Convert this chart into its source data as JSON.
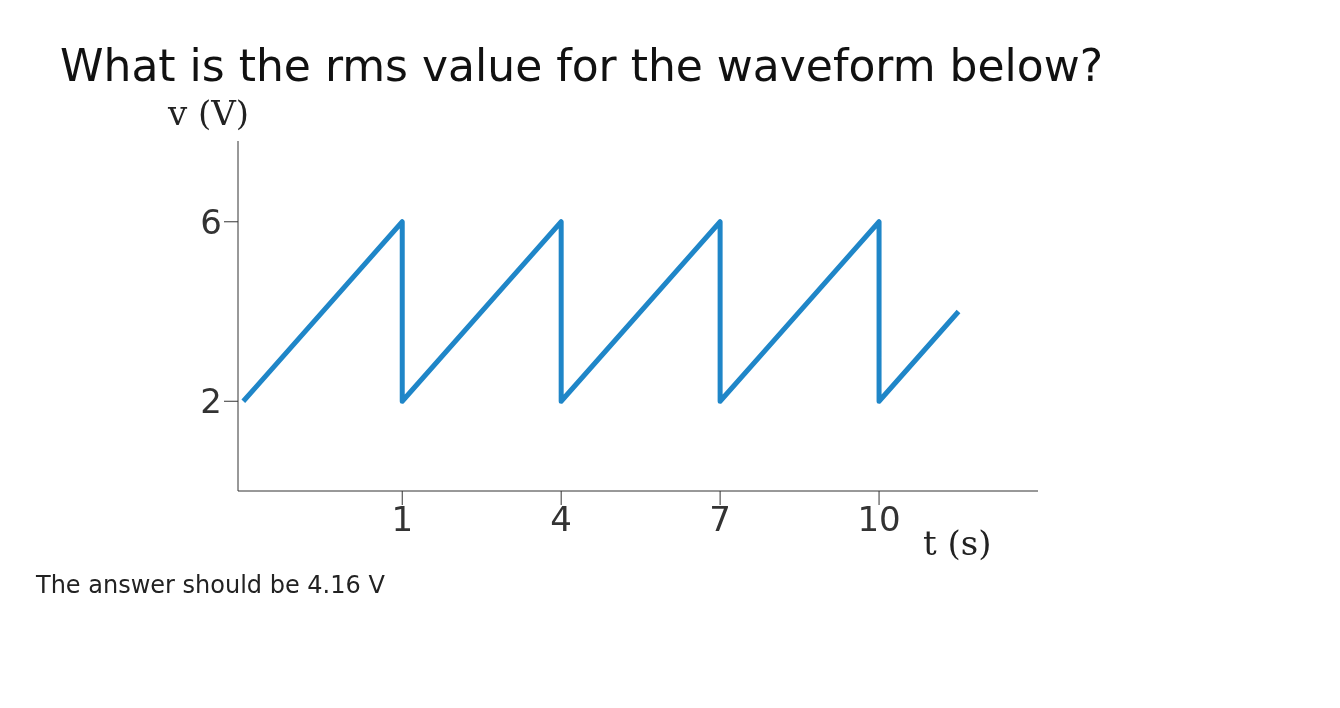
{
  "chart_data": {
    "type": "line",
    "title": "What is the rms value for the waveform below?",
    "xlabel": "t (s)",
    "ylabel": "v (V)",
    "x": [
      -2,
      1,
      1,
      4,
      4,
      7,
      7,
      10,
      10,
      11.5
    ],
    "series": [
      {
        "color": "#1f86c8",
        "values": [
          2,
          6,
          2,
          6,
          2,
          6,
          2,
          6,
          2,
          4
        ]
      }
    ],
    "xlim": [
      -2.1,
      13
    ],
    "ylim": [
      0,
      7.8
    ],
    "xticks": [
      1,
      4,
      7,
      10
    ],
    "yticks": [
      2,
      6
    ],
    "annotations": [
      "The answer should be 4.16 V"
    ]
  }
}
